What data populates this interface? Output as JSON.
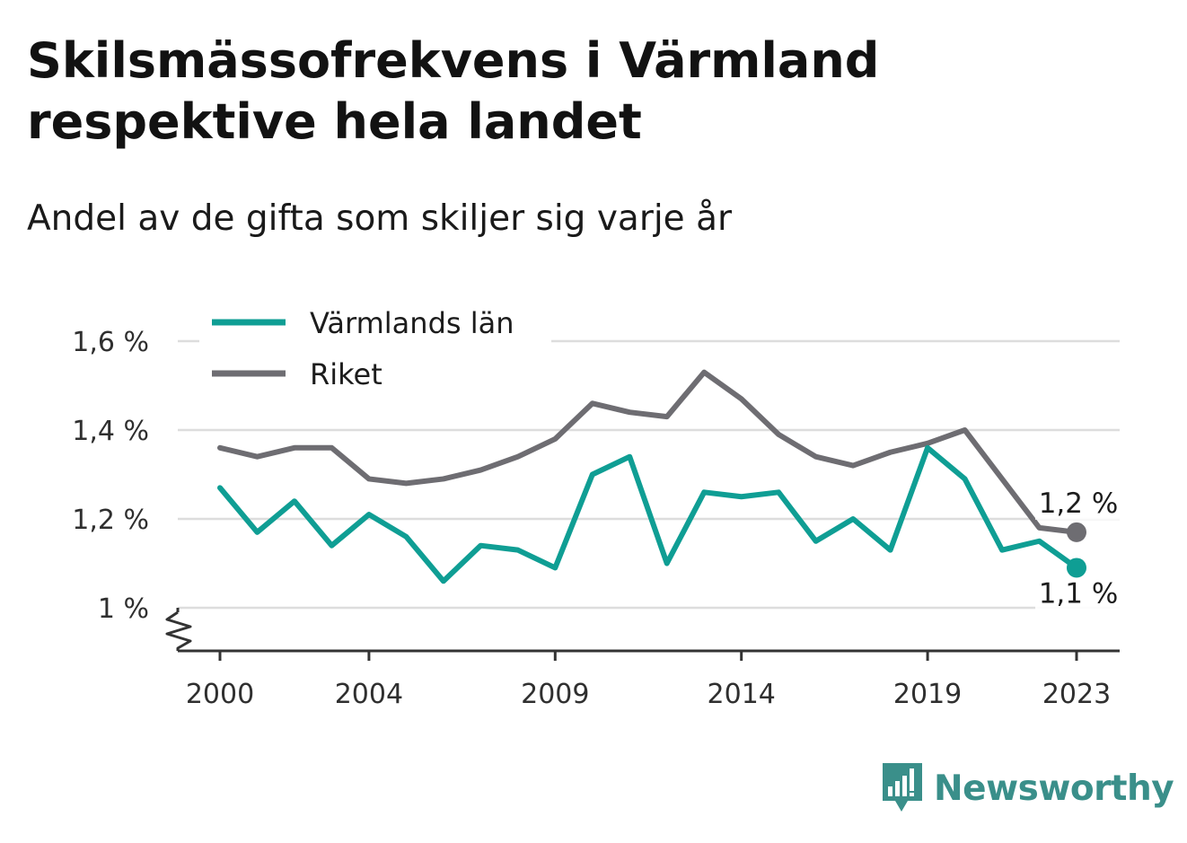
{
  "title": "Skilsmässofrekvens i Värmland respektive hela landet",
  "subtitle": "Andel av de gifta som skiljer sig varje år",
  "brand": {
    "name": "Newsworthy",
    "icon": "newsworthy-logo-icon",
    "color": "#3a8f8a"
  },
  "colors": {
    "varmland": "#0f9e94",
    "riket": "#6e6d72",
    "grid": "#dddddd",
    "axis": "#333333"
  },
  "chart_data": {
    "type": "line",
    "title": "Skilsmässofrekvens i Värmland respektive hela landet",
    "subtitle": "Andel av de gifta som skiljer sig varje år",
    "xlabel": "",
    "ylabel": "",
    "x": [
      2000,
      2001,
      2002,
      2003,
      2004,
      2005,
      2006,
      2007,
      2008,
      2009,
      2010,
      2011,
      2012,
      2013,
      2014,
      2015,
      2016,
      2017,
      2018,
      2019,
      2020,
      2021,
      2022,
      2023
    ],
    "x_ticks": [
      2000,
      2004,
      2009,
      2014,
      2019,
      2023
    ],
    "x_tick_labels": [
      "2000",
      "2004",
      "2009",
      "2014",
      "2019",
      "2023"
    ],
    "ylim": [
      0.9,
      1.6
    ],
    "y_ticks": [
      1.0,
      1.2,
      1.4,
      1.6
    ],
    "y_tick_labels": [
      "1 %",
      "1,2 %",
      "1,4 %",
      "1,6 %"
    ],
    "y_axis_break": true,
    "grid": true,
    "legend": "top-left",
    "series": [
      {
        "name": "Värmlands län",
        "color": "#0f9e94",
        "values": [
          1.27,
          1.17,
          1.24,
          1.14,
          1.21,
          1.16,
          1.06,
          1.14,
          1.13,
          1.09,
          1.3,
          1.34,
          1.1,
          1.26,
          1.25,
          1.26,
          1.15,
          1.2,
          1.13,
          1.36,
          1.29,
          1.13,
          1.15,
          1.09
        ],
        "end_label": "1,1 %"
      },
      {
        "name": "Riket",
        "color": "#6e6d72",
        "values": [
          1.36,
          1.34,
          1.36,
          1.36,
          1.29,
          1.28,
          1.29,
          1.31,
          1.34,
          1.38,
          1.46,
          1.44,
          1.43,
          1.53,
          1.47,
          1.39,
          1.34,
          1.32,
          1.35,
          1.37,
          1.4,
          1.29,
          1.18,
          1.17
        ],
        "end_label": "1,2 %"
      }
    ]
  }
}
